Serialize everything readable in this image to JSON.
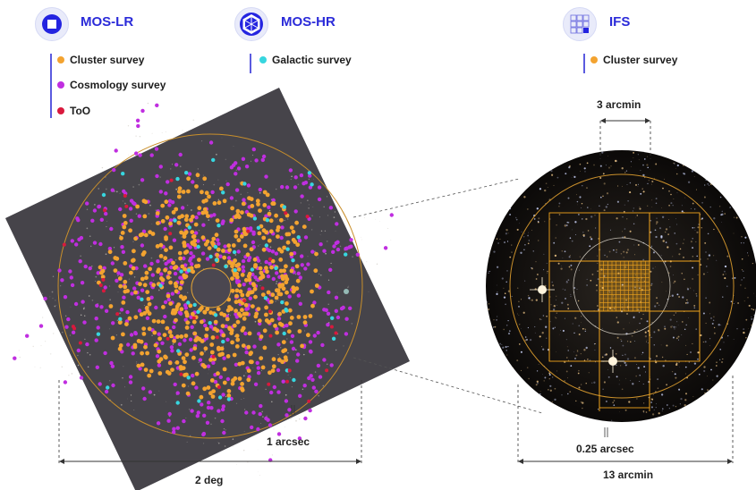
{
  "instruments": [
    {
      "name": "MOS-LR",
      "icon": "filled-square-circle-icon",
      "legend": [
        {
          "label": "Cluster survey",
          "color": "#f3a330"
        },
        {
          "label": "Cosmology survey",
          "color": "#c02ee0"
        },
        {
          "label": "ToO",
          "color": "#d9193d"
        }
      ]
    },
    {
      "name": "MOS-HR",
      "icon": "hexagon-star-icon",
      "legend": [
        {
          "label": "Galactic survey",
          "color": "#37d6df"
        }
      ]
    },
    {
      "name": "IFS",
      "icon": "grid-icon",
      "legend": [
        {
          "label": "Cluster survey",
          "color": "#f3a330"
        }
      ]
    }
  ],
  "field_scale": {
    "width_label": "2 deg",
    "fiber_label": "1 arcsec"
  },
  "zoom_scale": {
    "top_label": "3 arcmin",
    "spaxel_label": "0.25 arcsec",
    "width_label": "13 arcmin"
  },
  "colors": {
    "accent": "#2b2bd9",
    "field_bg": "#45434a",
    "circle_line": "#c98f2b",
    "ifu_grid": "#f2a51c"
  }
}
